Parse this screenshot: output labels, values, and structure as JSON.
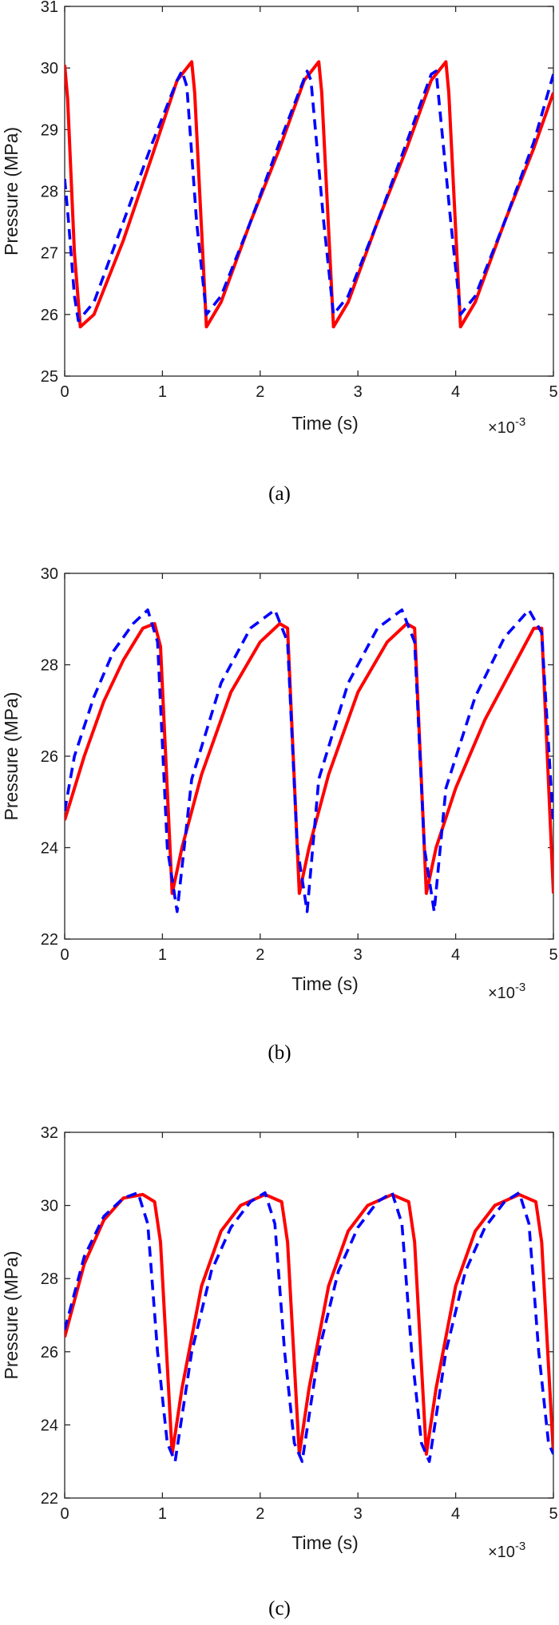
{
  "colors": {
    "solid_series": "#ff0000",
    "dashed_series": "#0000ff",
    "axes": "#262626",
    "background": "#ffffff"
  },
  "chart_data": [
    {
      "type": "line",
      "panel_label": "(a)",
      "xlabel": "Time (s)",
      "ylabel": "Pressure (MPa)",
      "x_exponent": {
        "base": "×10",
        "exp": "-3"
      },
      "xlim": [
        0,
        5
      ],
      "ylim": [
        25,
        31
      ],
      "xticks": [
        0,
        1,
        2,
        3,
        4,
        5
      ],
      "yticks": [
        25,
        26,
        27,
        28,
        29,
        30,
        31
      ],
      "grid": false,
      "legend": "none",
      "series": [
        {
          "style": "solid",
          "color": "#ff0000",
          "x": [
            0.0,
            0.03,
            0.1,
            0.16,
            0.3,
            0.6,
            0.9,
            1.15,
            1.3,
            1.33,
            1.45,
            1.6,
            1.9,
            2.2,
            2.45,
            2.6,
            2.63,
            2.75,
            2.9,
            3.2,
            3.5,
            3.75,
            3.9,
            3.93,
            4.05,
            4.2,
            4.5,
            4.8,
            5.0
          ],
          "y": [
            30.05,
            29.5,
            27.0,
            25.8,
            26.0,
            27.2,
            28.6,
            29.8,
            30.1,
            29.6,
            25.8,
            26.2,
            27.5,
            28.7,
            29.8,
            30.1,
            29.6,
            25.8,
            26.2,
            27.5,
            28.7,
            29.8,
            30.1,
            29.6,
            25.8,
            26.2,
            27.5,
            28.7,
            29.6
          ]
        },
        {
          "style": "dashed",
          "color": "#0000ff",
          "x": [
            0.0,
            0.04,
            0.1,
            0.14,
            0.3,
            0.6,
            0.9,
            1.15,
            1.2,
            1.25,
            1.35,
            1.45,
            1.6,
            1.9,
            2.2,
            2.48,
            2.52,
            2.65,
            2.75,
            2.9,
            3.2,
            3.5,
            3.75,
            3.8,
            3.95,
            4.05,
            4.2,
            4.5,
            4.8,
            5.0
          ],
          "y": [
            28.2,
            27.5,
            26.3,
            25.9,
            26.2,
            27.5,
            28.8,
            29.8,
            29.95,
            29.7,
            27.5,
            26.0,
            26.3,
            27.5,
            28.8,
            29.95,
            29.8,
            27.5,
            26.0,
            26.3,
            27.5,
            28.8,
            29.9,
            29.95,
            27.5,
            26.0,
            26.3,
            27.5,
            28.8,
            29.9
          ]
        }
      ]
    },
    {
      "type": "line",
      "panel_label": "(b)",
      "xlabel": "Time (s)",
      "ylabel": "Pressure (MPa)",
      "x_exponent": {
        "base": "×10",
        "exp": "-3"
      },
      "xlim": [
        0,
        5
      ],
      "ylim": [
        22,
        30
      ],
      "xticks": [
        0,
        1,
        2,
        3,
        4,
        5
      ],
      "yticks": [
        22,
        24,
        26,
        28,
        30
      ],
      "grid": false,
      "legend": "none",
      "series": [
        {
          "style": "solid",
          "color": "#ff0000",
          "x": [
            0.0,
            0.2,
            0.4,
            0.6,
            0.8,
            0.92,
            0.98,
            1.1,
            1.2,
            1.4,
            1.7,
            2.0,
            2.2,
            2.28,
            2.4,
            2.5,
            2.7,
            3.0,
            3.3,
            3.5,
            3.58,
            3.7,
            3.8,
            4.0,
            4.3,
            4.6,
            4.8,
            4.88,
            5.0
          ],
          "y": [
            24.6,
            26.0,
            27.2,
            28.1,
            28.8,
            28.9,
            28.4,
            23.0,
            24.0,
            25.6,
            27.4,
            28.5,
            28.9,
            28.8,
            23.0,
            24.0,
            25.6,
            27.4,
            28.5,
            28.9,
            28.8,
            23.0,
            24.0,
            25.3,
            26.8,
            28.0,
            28.8,
            28.8,
            23.0
          ]
        },
        {
          "style": "dashed",
          "color": "#0000ff",
          "x": [
            0.0,
            0.1,
            0.3,
            0.5,
            0.7,
            0.85,
            0.95,
            1.05,
            1.15,
            1.3,
            1.6,
            1.9,
            2.15,
            2.28,
            2.38,
            2.48,
            2.6,
            2.9,
            3.2,
            3.45,
            3.58,
            3.68,
            3.78,
            3.9,
            4.2,
            4.5,
            4.75,
            4.88,
            5.0
          ],
          "y": [
            24.8,
            26.0,
            27.3,
            28.3,
            28.9,
            29.2,
            28.5,
            24.0,
            22.6,
            25.5,
            27.6,
            28.8,
            29.2,
            28.5,
            24.0,
            22.6,
            25.5,
            27.6,
            28.8,
            29.2,
            28.5,
            24.0,
            22.6,
            25.3,
            27.3,
            28.6,
            29.2,
            28.7,
            24.5
          ]
        }
      ]
    },
    {
      "type": "line",
      "panel_label": "(c)",
      "xlabel": "Time (s)",
      "ylabel": "Pressure (MPa)",
      "x_exponent": {
        "base": "×10",
        "exp": "-3"
      },
      "xlim": [
        0,
        5
      ],
      "ylim": [
        22,
        32
      ],
      "xticks": [
        0,
        1,
        2,
        3,
        4,
        5
      ],
      "yticks": [
        22,
        24,
        26,
        28,
        30,
        32
      ],
      "grid": false,
      "legend": "none",
      "series": [
        {
          "style": "solid",
          "color": "#ff0000",
          "x": [
            0.0,
            0.2,
            0.4,
            0.6,
            0.8,
            0.92,
            0.98,
            1.1,
            1.2,
            1.4,
            1.6,
            1.8,
            2.05,
            2.22,
            2.28,
            2.4,
            2.5,
            2.7,
            2.9,
            3.1,
            3.35,
            3.52,
            3.58,
            3.7,
            3.8,
            4.0,
            4.2,
            4.4,
            4.65,
            4.82,
            4.88,
            5.0
          ],
          "y": [
            26.4,
            28.4,
            29.6,
            30.2,
            30.3,
            30.1,
            29.0,
            23.2,
            25.0,
            27.8,
            29.3,
            30.0,
            30.3,
            30.1,
            29.0,
            23.2,
            25.0,
            27.8,
            29.3,
            30.0,
            30.3,
            30.1,
            29.0,
            23.2,
            25.0,
            27.8,
            29.3,
            30.0,
            30.3,
            30.1,
            29.0,
            23.2
          ]
        },
        {
          "style": "dashed",
          "color": "#0000ff",
          "x": [
            0.0,
            0.2,
            0.4,
            0.6,
            0.75,
            0.85,
            0.95,
            1.05,
            1.13,
            1.3,
            1.5,
            1.7,
            1.9,
            2.05,
            2.15,
            2.25,
            2.35,
            2.43,
            2.6,
            2.8,
            3.0,
            3.2,
            3.35,
            3.45,
            3.55,
            3.65,
            3.73,
            3.9,
            4.1,
            4.3,
            4.5,
            4.65,
            4.75,
            4.85,
            4.95,
            5.0
          ],
          "y": [
            26.6,
            28.6,
            29.7,
            30.2,
            30.35,
            29.5,
            26.0,
            23.5,
            23.0,
            26.0,
            28.2,
            29.4,
            30.1,
            30.35,
            29.5,
            26.0,
            23.5,
            23.0,
            26.0,
            28.2,
            29.4,
            30.1,
            30.35,
            29.5,
            26.0,
            23.5,
            23.0,
            26.0,
            28.2,
            29.4,
            30.1,
            30.35,
            29.5,
            26.0,
            23.5,
            23.2
          ]
        }
      ]
    }
  ]
}
